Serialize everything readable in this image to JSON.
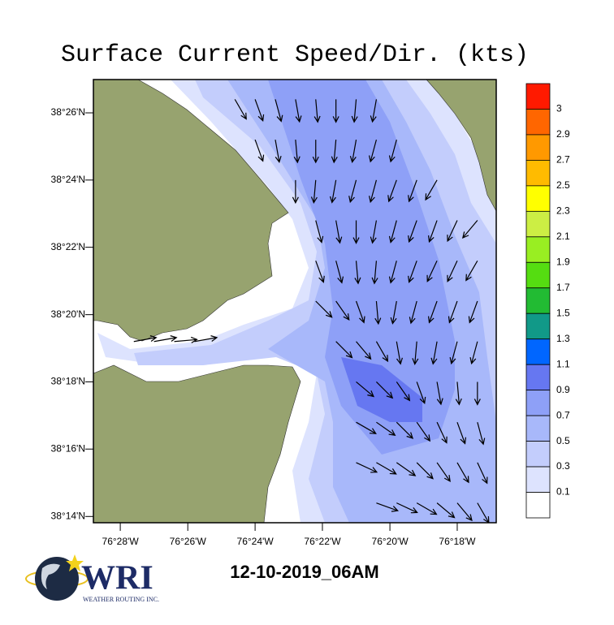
{
  "chart_data": {
    "type": "vector-map",
    "title": "Surface Current Speed/Dir. (kts)",
    "xlim": [
      -76.48,
      -76.2807
    ],
    "ylim": [
      38.2302,
      38.4498
    ],
    "xticks": [
      {
        "value": -76.4667,
        "label": "76°28'W"
      },
      {
        "value": -76.4333,
        "label": "76°26'W"
      },
      {
        "value": -76.4,
        "label": "76°24'W"
      },
      {
        "value": -76.3667,
        "label": "76°22'W"
      },
      {
        "value": -76.3333,
        "label": "76°20'W"
      },
      {
        "value": -76.3,
        "label": "76°18'W"
      }
    ],
    "yticks": [
      {
        "value": 38.4333,
        "label": "38°26'N"
      },
      {
        "value": 38.4,
        "label": "38°24'N"
      },
      {
        "value": 38.3667,
        "label": "38°22'N"
      },
      {
        "value": 38.3333,
        "label": "38°20'N"
      },
      {
        "value": 38.3,
        "label": "38°18'N"
      },
      {
        "value": 38.2667,
        "label": "38°16'N"
      },
      {
        "value": 38.2333,
        "label": "38°14'N"
      }
    ],
    "colorbar": {
      "labels": [
        3,
        2.9,
        2.7,
        2.5,
        2.3,
        2.1,
        1.9,
        1.7,
        1.5,
        1.3,
        1.1,
        0.9,
        0.7,
        0.5,
        0.3,
        0.1
      ],
      "colors": [
        "#ff1a00",
        "#ff6600",
        "#ff9900",
        "#ffbb00",
        "#ffff00",
        "#ccee44",
        "#99ee22",
        "#55dd11",
        "#22bb33",
        "#119988",
        "#0066ff",
        "#6677f1",
        "#8ea0f7",
        "#a8b8fa",
        "#c3cdfc",
        "#dde3fe",
        "#ffffff"
      ]
    },
    "land_color": "#97a36f",
    "vector_rows": [
      {
        "lat": 38.44,
        "lon": [
          -76.41,
          -76.4,
          -76.39,
          -76.38,
          -76.37,
          -76.36,
          -76.35,
          -76.34
        ],
        "dir": [
          150,
          160,
          165,
          170,
          175,
          180,
          185,
          190
        ]
      },
      {
        "lat": 38.42,
        "lon": [
          -76.4,
          -76.39,
          -76.38,
          -76.37,
          -76.36,
          -76.35,
          -76.34,
          -76.33
        ],
        "dir": [
          160,
          170,
          175,
          180,
          185,
          190,
          195,
          195
        ]
      },
      {
        "lat": 38.4,
        "lon": [
          -76.38,
          -76.37,
          -76.36,
          -76.35,
          -76.34,
          -76.33,
          -76.32,
          -76.31
        ],
        "dir": [
          180,
          185,
          190,
          195,
          195,
          200,
          200,
          210
        ]
      },
      {
        "lat": 38.38,
        "lon": [
          -76.37,
          -76.36,
          -76.35,
          -76.34,
          -76.33,
          -76.32,
          -76.31,
          -76.3,
          -76.29
        ],
        "dir": [
          165,
          170,
          180,
          190,
          195,
          200,
          200,
          205,
          220
        ]
      },
      {
        "lat": 38.36,
        "lon": [
          -76.37,
          -76.36,
          -76.35,
          -76.34,
          -76.33,
          -76.32,
          -76.31,
          -76.3,
          -76.29
        ],
        "dir": [
          160,
          165,
          175,
          185,
          195,
          200,
          205,
          205,
          210
        ]
      },
      {
        "lat": 38.34,
        "lon": [
          -76.37,
          -76.36,
          -76.35,
          -76.34,
          -76.33,
          -76.32,
          -76.31,
          -76.3,
          -76.29
        ],
        "dir": [
          135,
          145,
          160,
          175,
          190,
          195,
          200,
          200,
          200
        ]
      },
      {
        "lat": 38.32,
        "lon": [
          -76.46,
          -76.45,
          -76.44,
          -76.43,
          -76.36,
          -76.35,
          -76.34,
          -76.33,
          -76.32,
          -76.31,
          -76.3,
          -76.29
        ],
        "dir": [
          80,
          80,
          85,
          80,
          135,
          140,
          150,
          170,
          185,
          190,
          195,
          195
        ]
      },
      {
        "lat": 38.3,
        "lon": [
          -76.35,
          -76.34,
          -76.33,
          -76.32,
          -76.31,
          -76.3,
          -76.29
        ],
        "dir": [
          130,
          135,
          145,
          160,
          170,
          175,
          180
        ]
      },
      {
        "lat": 38.28,
        "lon": [
          -76.35,
          -76.34,
          -76.33,
          -76.32,
          -76.31,
          -76.3,
          -76.29
        ],
        "dir": [
          120,
          125,
          135,
          145,
          155,
          160,
          165
        ]
      },
      {
        "lat": 38.26,
        "lon": [
          -76.35,
          -76.34,
          -76.33,
          -76.32,
          -76.31,
          -76.3,
          -76.29
        ],
        "dir": [
          115,
          120,
          125,
          135,
          145,
          150,
          155
        ]
      },
      {
        "lat": 38.24,
        "lon": [
          -76.34,
          -76.33,
          -76.32,
          -76.31,
          -76.3,
          -76.29
        ],
        "dir": [
          110,
          115,
          120,
          130,
          140,
          150
        ]
      }
    ],
    "date_label": "12-10-2019_06AM",
    "logo": {
      "name": "WRI",
      "tagline": "WEATHER ROUTING INC."
    }
  }
}
